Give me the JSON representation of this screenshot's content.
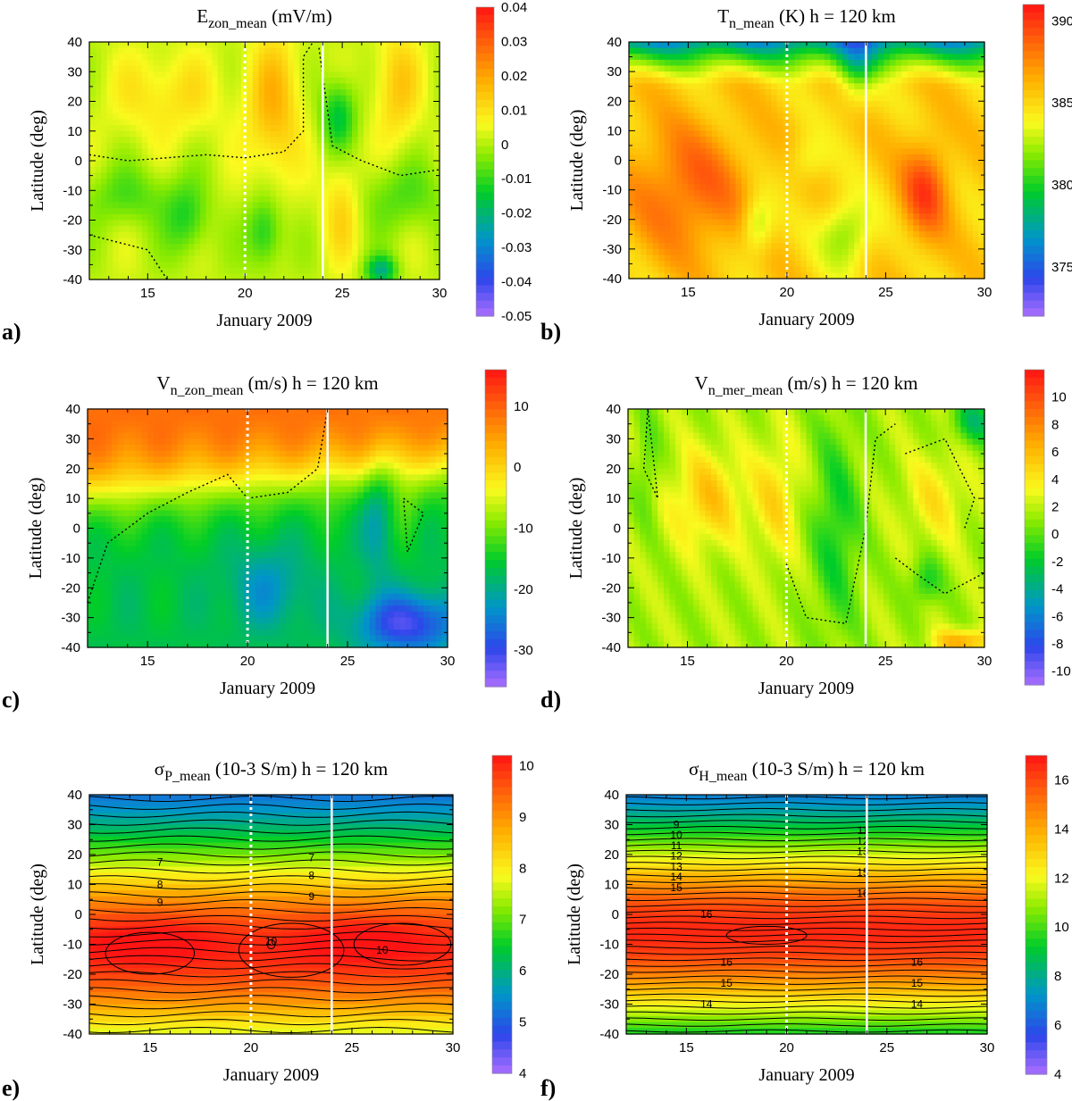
{
  "figure": {
    "xlabel": "January 2009",
    "ylabel": "Latitude (deg)",
    "height_text": "h = 120 km",
    "event_lines": [
      20,
      24
    ]
  },
  "chart_data": [
    {
      "id": "a",
      "type": "heatmap",
      "letter": "a)",
      "title_main": "E",
      "title_sub": "zon_mean",
      "title_sup": "",
      "unit": "(mV/m)",
      "height_label": "",
      "xlim": [
        12,
        30
      ],
      "ylim": [
        -40,
        40
      ],
      "xticks": [
        15,
        20,
        25,
        30
      ],
      "yticks": [
        -40,
        -30,
        -20,
        -10,
        0,
        10,
        20,
        30,
        40
      ],
      "colorbar_range": [
        -0.05,
        0.04
      ],
      "colorbar_ticks": [
        "0.04",
        "0.03",
        "0.02",
        "0.01",
        "0",
        "-0.01",
        "-0.02",
        "-0.03",
        "-0.04",
        "-0.05"
      ],
      "contour_labels": [],
      "pattern": "ezon"
    },
    {
      "id": "b",
      "type": "heatmap",
      "letter": "b)",
      "title_main": "T",
      "title_sub": "n_mean",
      "title_sup": "",
      "unit": "(K)",
      "height_label": "h = 120 km",
      "xlim": [
        12,
        30
      ],
      "ylim": [
        -40,
        40
      ],
      "xticks": [
        15,
        20,
        25,
        30
      ],
      "yticks": [
        -40,
        -30,
        -20,
        -10,
        0,
        10,
        20,
        30,
        40
      ],
      "colorbar_range": [
        372,
        391
      ],
      "colorbar_ticks": [
        "390",
        "385",
        "380",
        "375"
      ],
      "contour_labels": [],
      "pattern": "tn"
    },
    {
      "id": "c",
      "type": "heatmap",
      "letter": "c)",
      "title_main": "V",
      "title_sub": "n_zon_mean",
      "title_sup": "",
      "unit": "(m/s)",
      "height_label": "h = 120 km",
      "xlim": [
        12,
        30
      ],
      "ylim": [
        -40,
        40
      ],
      "xticks": [
        15,
        20,
        25,
        30
      ],
      "yticks": [
        -40,
        -30,
        -20,
        -10,
        0,
        10,
        20,
        30,
        40
      ],
      "colorbar_range": [
        -36,
        16
      ],
      "colorbar_ticks": [
        "10",
        "0",
        "-10",
        "-20",
        "-30"
      ],
      "contour_labels": [],
      "pattern": "vzon"
    },
    {
      "id": "d",
      "type": "heatmap",
      "letter": "d)",
      "title_main": "V",
      "title_sub": "n_mer_mean",
      "title_sup": "",
      "unit": "(m/s)",
      "height_label": "h = 120 km",
      "xlim": [
        12,
        30
      ],
      "ylim": [
        -40,
        40
      ],
      "xticks": [
        15,
        20,
        25,
        30
      ],
      "yticks": [
        -40,
        -30,
        -20,
        -10,
        0,
        10,
        20,
        30,
        40
      ],
      "colorbar_range": [
        -11,
        12
      ],
      "colorbar_ticks": [
        "10",
        "8",
        "6",
        "4",
        "2",
        "0",
        "-2",
        "-4",
        "-6",
        "-8",
        "-10"
      ],
      "contour_labels": [],
      "pattern": "vmer"
    },
    {
      "id": "e",
      "type": "heatmap",
      "letter": "e)",
      "title_main": "σ",
      "title_sub": "P_mean",
      "title_sup": "-3",
      "unit": "(10-3 S/m)",
      "height_label": "h = 120 km",
      "xlim": [
        12,
        30
      ],
      "ylim": [
        -40,
        40
      ],
      "xticks": [
        15,
        20,
        25,
        30
      ],
      "yticks": [
        -40,
        -30,
        -20,
        -10,
        0,
        10,
        20,
        30,
        40
      ],
      "colorbar_range": [
        4,
        10.2
      ],
      "colorbar_ticks": [
        "10",
        "9",
        "8",
        "7",
        "6",
        "5",
        "4"
      ],
      "contour_labels": [
        "7",
        "8",
        "9",
        "7",
        "8",
        "9",
        "10",
        "10"
      ],
      "pattern": "sigp"
    },
    {
      "id": "f",
      "type": "heatmap",
      "letter": "f)",
      "title_main": "σ",
      "title_sub": "H_mean",
      "title_sup": "-3",
      "unit": "(10-3 S/m)",
      "height_label": "h = 120 km",
      "xlim": [
        12,
        30
      ],
      "ylim": [
        -40,
        40
      ],
      "xticks": [
        15,
        20,
        25,
        30
      ],
      "yticks": [
        -40,
        -30,
        -20,
        -10,
        0,
        10,
        20,
        30,
        40
      ],
      "colorbar_range": [
        4,
        17
      ],
      "colorbar_ticks": [
        "16",
        "14",
        "12",
        "10",
        "8",
        "6",
        "4"
      ],
      "contour_labels": [
        "9",
        "10",
        "11",
        "12",
        "13",
        "14",
        "15",
        "16",
        "11",
        "12",
        "13",
        "15",
        "16",
        "16",
        "15",
        "14",
        "16",
        "15",
        "14"
      ],
      "pattern": "sigh"
    }
  ]
}
